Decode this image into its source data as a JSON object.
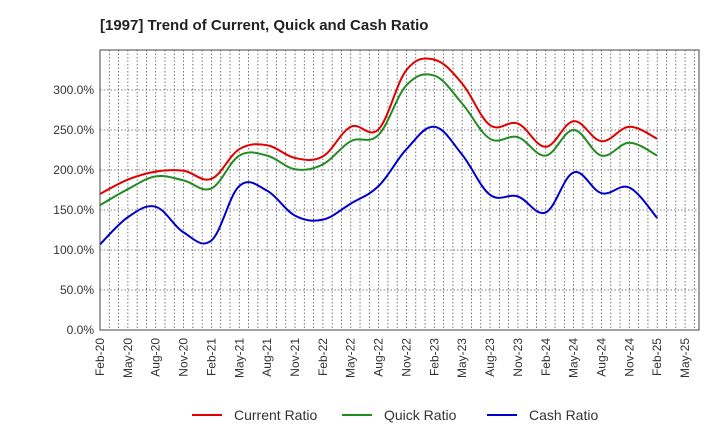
{
  "chart_data": {
    "type": "line",
    "title": "[1997]  Trend of Current, Quick and Cash Ratio",
    "xlabel": "",
    "ylabel": "",
    "ylim": [
      0,
      350
    ],
    "y_ticks": [
      0,
      50,
      100,
      150,
      200,
      250,
      300
    ],
    "y_tick_labels": [
      "0.0%",
      "50.0%",
      "100.0%",
      "150.0%",
      "200.0%",
      "250.0%",
      "300.0%"
    ],
    "x_tick_labels": [
      "Feb-20",
      "May-20",
      "Aug-20",
      "Nov-20",
      "Feb-21",
      "May-21",
      "Aug-21",
      "Nov-21",
      "Feb-22",
      "May-22",
      "Aug-22",
      "Nov-22",
      "Feb-23",
      "May-23",
      "Aug-23",
      "Nov-23",
      "Feb-24",
      "May-24",
      "Aug-24",
      "Nov-24",
      "Feb-25",
      "May-25"
    ],
    "x": [
      "Feb-20",
      "May-20",
      "Aug-20",
      "Nov-20",
      "Feb-21",
      "May-21",
      "Aug-21",
      "Nov-21",
      "Feb-22",
      "May-22",
      "Aug-22",
      "Nov-22",
      "Feb-23",
      "May-23",
      "Aug-23",
      "Nov-23",
      "Feb-24",
      "May-24",
      "Aug-24",
      "Nov-24",
      "Feb-25"
    ],
    "series": [
      {
        "name": "Current Ratio",
        "color": "#e00000",
        "values": [
          170,
          188,
          198,
          199,
          189,
          226,
          231,
          215,
          217,
          254,
          251,
          325,
          338,
          308,
          256,
          258,
          229,
          261,
          236,
          254,
          239
        ]
      },
      {
        "name": "Quick Ratio",
        "color": "#228b22",
        "values": [
          156,
          176,
          192,
          187,
          177,
          218,
          218,
          201,
          207,
          236,
          244,
          306,
          318,
          283,
          239,
          241,
          218,
          250,
          218,
          234,
          218
        ]
      },
      {
        "name": "Cash Ratio",
        "color": "#0000cc",
        "values": [
          107,
          141,
          154,
          122,
          112,
          180,
          174,
          143,
          138,
          158,
          180,
          226,
          254,
          219,
          169,
          167,
          147,
          197,
          171,
          178,
          140
        ]
      }
    ],
    "legend_position": "bottom",
    "grid": true
  }
}
